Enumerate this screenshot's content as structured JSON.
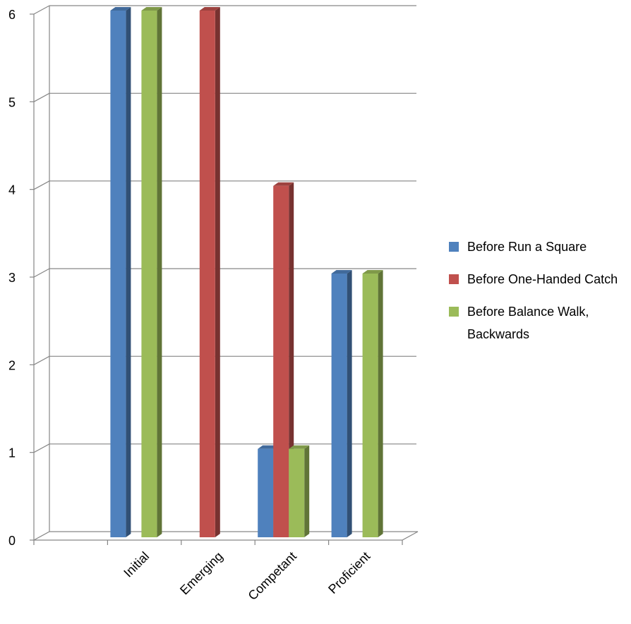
{
  "chart_data": {
    "type": "bar",
    "title": "",
    "xlabel": "",
    "ylabel": "",
    "categories": [
      "Initial",
      "Emerging",
      "Competant",
      "Proficient"
    ],
    "series": [
      {
        "name": "Before Run a Square",
        "values": [
          6,
          0,
          1,
          3
        ],
        "color": "#4F81BD"
      },
      {
        "name": "Before One-Handed Catch",
        "values": [
          0,
          6,
          4,
          0
        ],
        "color": "#C0504D"
      },
      {
        "name": "Before Balance Walk, Backwards",
        "values": [
          6,
          0,
          1,
          3
        ],
        "color": "#9BBB59"
      }
    ],
    "ylim": [
      0,
      6
    ],
    "y_ticks": [
      "0",
      "1",
      "2",
      "3",
      "4",
      "5",
      "6"
    ],
    "grid": true,
    "three_d": true,
    "legend_position": "right"
  }
}
